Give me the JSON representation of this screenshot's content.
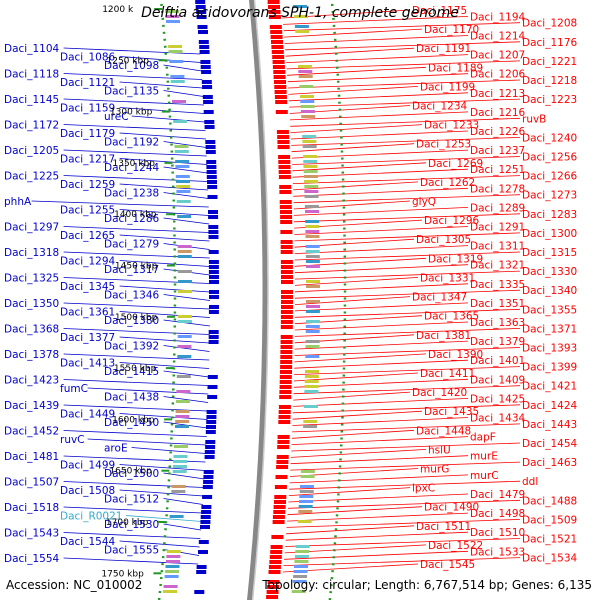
{
  "title": "Delftia acidovorans SPH-1, complete genome",
  "accession": "Accession: NC_010002",
  "topology": "Topology: circular; Length: 6,767,514 bp; Genes: 6,135",
  "colors": {
    "left_genes": "#0000cc",
    "rna_gene": "#33aacc",
    "right_genes": "#ff0000",
    "backbone": "#888888",
    "tick": "#229922"
  },
  "scale_ticks": [
    "1200 k",
    "1250 kbp",
    "1300 kbp",
    "1350 kbp",
    "1400 kbp",
    "1450 kbp",
    "1500 kbp",
    "1550 kbp",
    "1600 kbp",
    "1650 kbp",
    "1700 kbp",
    "1750 kbp"
  ],
  "left_labels": [
    {
      "text": "Daci_1104",
      "color": "#0000cc"
    },
    {
      "text": "Daci_1086",
      "color": "#0000cc"
    },
    {
      "text": "Daci_1098",
      "color": "#0000cc"
    },
    {
      "text": "Daci_1118",
      "color": "#0000cc"
    },
    {
      "text": "Daci_1121",
      "color": "#0000cc"
    },
    {
      "text": "Daci_1135",
      "color": "#0000cc"
    },
    {
      "text": "Daci_1145",
      "color": "#0000cc"
    },
    {
      "text": "Daci_1159",
      "color": "#0000cc"
    },
    {
      "text": "ureC",
      "color": "#0000cc"
    },
    {
      "text": "Daci_1172",
      "color": "#0000cc"
    },
    {
      "text": "Daci_1179",
      "color": "#0000cc"
    },
    {
      "text": "Daci_1192",
      "color": "#0000cc"
    },
    {
      "text": "Daci_1205",
      "color": "#0000cc"
    },
    {
      "text": "Daci_1217",
      "color": "#0000cc"
    },
    {
      "text": "Daci_1244",
      "color": "#0000cc"
    },
    {
      "text": "Daci_1225",
      "color": "#0000cc"
    },
    {
      "text": "Daci_1259",
      "color": "#0000cc"
    },
    {
      "text": "Daci_1238",
      "color": "#0000cc"
    },
    {
      "text": "phhA",
      "color": "#0000cc"
    },
    {
      "text": "Daci_1255",
      "color": "#0000cc"
    },
    {
      "text": "Daci_1286",
      "color": "#0000cc"
    },
    {
      "text": "Daci_1297",
      "color": "#0000cc"
    },
    {
      "text": "Daci_1265",
      "color": "#0000cc"
    },
    {
      "text": "Daci_1279",
      "color": "#0000cc"
    },
    {
      "text": "Daci_1318",
      "color": "#0000cc"
    },
    {
      "text": "Daci_1294",
      "color": "#0000cc"
    },
    {
      "text": "Daci_1317",
      "color": "#0000cc"
    },
    {
      "text": "Daci_1325",
      "color": "#0000cc"
    },
    {
      "text": "Daci_1345",
      "color": "#0000cc"
    },
    {
      "text": "Daci_1346",
      "color": "#0000cc"
    },
    {
      "text": "Daci_1350",
      "color": "#0000cc"
    },
    {
      "text": "Daci_1361",
      "color": "#0000cc"
    },
    {
      "text": "Daci_1380",
      "color": "#0000cc"
    },
    {
      "text": "Daci_1368",
      "color": "#0000cc"
    },
    {
      "text": "Daci_1377",
      "color": "#0000cc"
    },
    {
      "text": "Daci_1392",
      "color": "#0000cc"
    },
    {
      "text": "Daci_1378",
      "color": "#0000cc"
    },
    {
      "text": "Daci_1413",
      "color": "#0000cc"
    },
    {
      "text": "Daci_1415",
      "color": "#0000cc"
    },
    {
      "text": "Daci_1423",
      "color": "#0000cc"
    },
    {
      "text": "fumC",
      "color": "#0000cc"
    },
    {
      "text": "Daci_1438",
      "color": "#0000cc"
    },
    {
      "text": "Daci_1439",
      "color": "#0000cc"
    },
    {
      "text": "Daci_1449",
      "color": "#0000cc"
    },
    {
      "text": "Daci_1450",
      "color": "#0000cc"
    },
    {
      "text": "Daci_1452",
      "color": "#0000cc"
    },
    {
      "text": "ruvC",
      "color": "#0000cc"
    },
    {
      "text": "aroE",
      "color": "#0000cc"
    },
    {
      "text": "Daci_1481",
      "color": "#0000cc"
    },
    {
      "text": "Daci_1499",
      "color": "#0000cc"
    },
    {
      "text": "Daci_1500",
      "color": "#0000cc"
    },
    {
      "text": "Daci_1507",
      "color": "#0000cc"
    },
    {
      "text": "Daci_1508",
      "color": "#0000cc"
    },
    {
      "text": "Daci_1512",
      "color": "#0000cc"
    },
    {
      "text": "Daci_1518",
      "color": "#0000cc"
    },
    {
      "text": "Daci_R0021",
      "color": "#33aacc"
    },
    {
      "text": "Daci_1530",
      "color": "#0000cc"
    },
    {
      "text": "Daci_1543",
      "color": "#0000cc"
    },
    {
      "text": "Daci_1544",
      "color": "#0000cc"
    },
    {
      "text": "Daci_1555",
      "color": "#0000cc"
    },
    {
      "text": "Daci_1554",
      "color": "#0000cc"
    }
  ],
  "right_labels": [
    {
      "text": "Daci_1175",
      "color": "#ff0000"
    },
    {
      "text": "Daci_1194",
      "color": "#ff0000"
    },
    {
      "text": "Daci_1208",
      "color": "#ff0000"
    },
    {
      "text": "Daci_1170",
      "color": "#ff0000"
    },
    {
      "text": "Daci_1214",
      "color": "#ff0000"
    },
    {
      "text": "Daci_1176",
      "color": "#ff0000"
    },
    {
      "text": "Daci_1191",
      "color": "#ff0000"
    },
    {
      "text": "Daci_1207",
      "color": "#ff0000"
    },
    {
      "text": "Daci_1221",
      "color": "#ff0000"
    },
    {
      "text": "Daci_1189",
      "color": "#ff0000"
    },
    {
      "text": "Daci_1206",
      "color": "#ff0000"
    },
    {
      "text": "Daci_1218",
      "color": "#ff0000"
    },
    {
      "text": "Daci_1199",
      "color": "#ff0000"
    },
    {
      "text": "Daci_1213",
      "color": "#ff0000"
    },
    {
      "text": "Daci_1223",
      "color": "#ff0000"
    },
    {
      "text": "Daci_1234",
      "color": "#ff0000"
    },
    {
      "text": "Daci_1216",
      "color": "#ff0000"
    },
    {
      "text": "ruvB",
      "color": "#ff0000"
    },
    {
      "text": "Daci_1233",
      "color": "#ff0000"
    },
    {
      "text": "Daci_1226",
      "color": "#ff0000"
    },
    {
      "text": "Daci_1240",
      "color": "#ff0000"
    },
    {
      "text": "Daci_1253",
      "color": "#ff0000"
    },
    {
      "text": "Daci_1237",
      "color": "#ff0000"
    },
    {
      "text": "Daci_1256",
      "color": "#ff0000"
    },
    {
      "text": "Daci_1269",
      "color": "#ff0000"
    },
    {
      "text": "Daci_1251",
      "color": "#ff0000"
    },
    {
      "text": "Daci_1266",
      "color": "#ff0000"
    },
    {
      "text": "Daci_1262",
      "color": "#ff0000"
    },
    {
      "text": "Daci_1278",
      "color": "#ff0000"
    },
    {
      "text": "Daci_1273",
      "color": "#ff0000"
    },
    {
      "text": "glyQ",
      "color": "#ff0000"
    },
    {
      "text": "Daci_1289",
      "color": "#ff0000"
    },
    {
      "text": "Daci_1283",
      "color": "#ff0000"
    },
    {
      "text": "Daci_1296",
      "color": "#ff0000"
    },
    {
      "text": "Daci_1291",
      "color": "#ff0000"
    },
    {
      "text": "Daci_1300",
      "color": "#ff0000"
    },
    {
      "text": "Daci_1305",
      "color": "#ff0000"
    },
    {
      "text": "Daci_1311",
      "color": "#ff0000"
    },
    {
      "text": "Daci_1315",
      "color": "#ff0000"
    },
    {
      "text": "Daci_1319",
      "color": "#ff0000"
    },
    {
      "text": "Daci_1321",
      "color": "#ff0000"
    },
    {
      "text": "Daci_1330",
      "color": "#ff0000"
    },
    {
      "text": "Daci_1331",
      "color": "#ff0000"
    },
    {
      "text": "Daci_1335",
      "color": "#ff0000"
    },
    {
      "text": "Daci_1340",
      "color": "#ff0000"
    },
    {
      "text": "Daci_1347",
      "color": "#ff0000"
    },
    {
      "text": "Daci_1351",
      "color": "#ff0000"
    },
    {
      "text": "Daci_1355",
      "color": "#ff0000"
    },
    {
      "text": "Daci_1365",
      "color": "#ff0000"
    },
    {
      "text": "Daci_1363",
      "color": "#ff0000"
    },
    {
      "text": "Daci_1371",
      "color": "#ff0000"
    },
    {
      "text": "Daci_1381",
      "color": "#ff0000"
    },
    {
      "text": "Daci_1379",
      "color": "#ff0000"
    },
    {
      "text": "Daci_1393",
      "color": "#ff0000"
    },
    {
      "text": "Daci_1390",
      "color": "#ff0000"
    },
    {
      "text": "Daci_1401",
      "color": "#ff0000"
    },
    {
      "text": "Daci_1399",
      "color": "#ff0000"
    },
    {
      "text": "Daci_1411",
      "color": "#ff0000"
    },
    {
      "text": "Daci_1409",
      "color": "#ff0000"
    },
    {
      "text": "Daci_1421",
      "color": "#ff0000"
    },
    {
      "text": "Daci_1420",
      "color": "#ff0000"
    },
    {
      "text": "Daci_1425",
      "color": "#ff0000"
    },
    {
      "text": "Daci_1424",
      "color": "#ff0000"
    },
    {
      "text": "Daci_1435",
      "color": "#ff0000"
    },
    {
      "text": "Daci_1434",
      "color": "#ff0000"
    },
    {
      "text": "Daci_1443",
      "color": "#ff0000"
    },
    {
      "text": "Daci_1448",
      "color": "#ff0000"
    },
    {
      "text": "dapF",
      "color": "#ff0000"
    },
    {
      "text": "Daci_1454",
      "color": "#ff0000"
    },
    {
      "text": "hslU",
      "color": "#ff0000"
    },
    {
      "text": "murE",
      "color": "#ff0000"
    },
    {
      "text": "Daci_1463",
      "color": "#ff0000"
    },
    {
      "text": "murG",
      "color": "#ff0000"
    },
    {
      "text": "murC",
      "color": "#ff0000"
    },
    {
      "text": "ddl",
      "color": "#ff0000"
    },
    {
      "text": "lpxC",
      "color": "#ff0000"
    },
    {
      "text": "Daci_1479",
      "color": "#ff0000"
    },
    {
      "text": "Daci_1488",
      "color": "#ff0000"
    },
    {
      "text": "Daci_1490",
      "color": "#ff0000"
    },
    {
      "text": "Daci_1498",
      "color": "#ff0000"
    },
    {
      "text": "Daci_1509",
      "color": "#ff0000"
    },
    {
      "text": "Daci_1511",
      "color": "#ff0000"
    },
    {
      "text": "Daci_1510",
      "color": "#ff0000"
    },
    {
      "text": "Daci_1521",
      "color": "#ff0000"
    },
    {
      "text": "Daci_1522",
      "color": "#ff0000"
    },
    {
      "text": "Daci_1533",
      "color": "#ff0000"
    },
    {
      "text": "Daci_1534",
      "color": "#ff0000"
    },
    {
      "text": "Daci_1545",
      "color": "#ff0000"
    }
  ]
}
